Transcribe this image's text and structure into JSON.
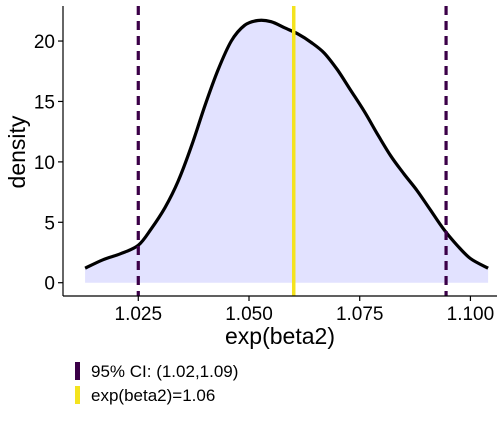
{
  "chart_data": {
    "type": "area",
    "xlabel": "exp(beta2)",
    "ylabel": "density",
    "xlim": [
      1.008,
      1.106
    ],
    "ylim": [
      -1.1,
      22.9
    ],
    "x_ticks": [
      {
        "value": 1.025,
        "label": "1.025"
      },
      {
        "value": 1.05,
        "label": "1.050"
      },
      {
        "value": 1.075,
        "label": "1.075"
      },
      {
        "value": 1.1,
        "label": "1.100"
      }
    ],
    "y_ticks": [
      {
        "value": 0,
        "label": "0"
      },
      {
        "value": 5,
        "label": "5"
      },
      {
        "value": 10,
        "label": "10"
      },
      {
        "value": 15,
        "label": "15"
      },
      {
        "value": 20,
        "label": "20"
      }
    ],
    "grid": false,
    "density": {
      "fill": "#e2e2ff",
      "line": "#000000",
      "x": [
        1.013,
        1.017,
        1.021,
        1.025,
        1.028,
        1.031,
        1.034,
        1.037,
        1.04,
        1.043,
        1.046,
        1.049,
        1.052,
        1.055,
        1.058,
        1.061,
        1.064,
        1.067,
        1.07,
        1.073,
        1.076,
        1.079,
        1.082,
        1.085,
        1.088,
        1.091,
        1.094,
        1.097,
        1.1,
        1.104
      ],
      "y": [
        1.2,
        1.9,
        2.4,
        3.1,
        4.5,
        6.2,
        8.4,
        11.3,
        14.6,
        17.6,
        20.0,
        21.3,
        21.7,
        21.6,
        21.1,
        20.6,
        19.9,
        19.0,
        17.6,
        15.9,
        14.2,
        12.3,
        10.5,
        9.0,
        7.6,
        6.0,
        4.4,
        3.1,
        2.0,
        1.2
      ]
    },
    "ci_lines": {
      "values": [
        1.025,
        1.0945
      ],
      "color": "#3b0048"
    },
    "point_estimate": {
      "value": 1.0601,
      "color": "#f4e31e"
    },
    "legend": {
      "position": "bottom-left",
      "items": [
        {
          "label": "95% CI: (1.02,1.09)",
          "color": "#3b0048"
        },
        {
          "label": "exp(beta2)=1.06",
          "color": "#f4e31e"
        }
      ]
    }
  }
}
